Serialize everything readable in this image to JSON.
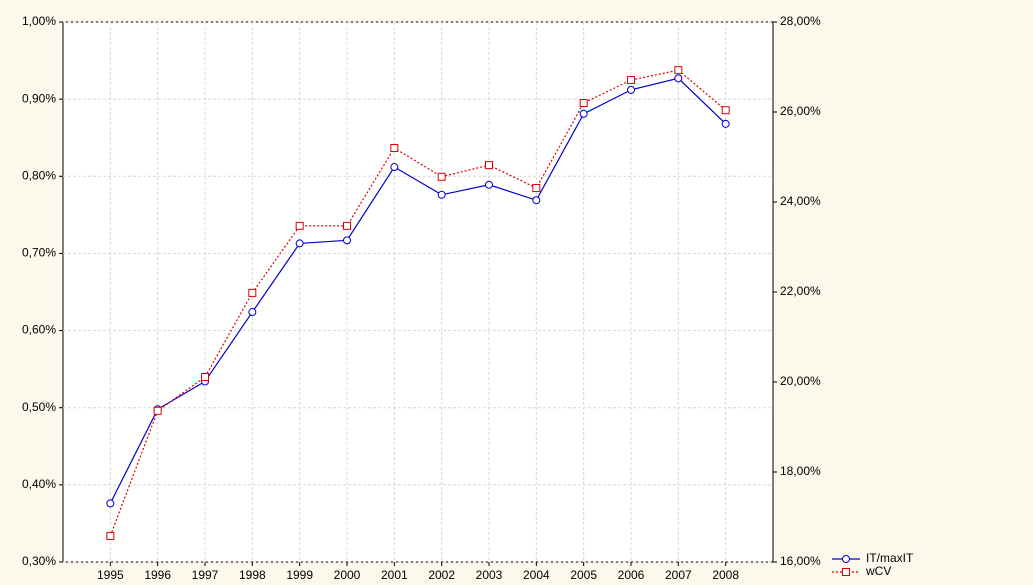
{
  "chart_data": {
    "type": "line",
    "x": [
      1995,
      1996,
      1997,
      1998,
      1999,
      2000,
      2001,
      2002,
      2003,
      2004,
      2005,
      2006,
      2007,
      2008
    ],
    "xlim": [
      1994,
      2009
    ],
    "xticks": [
      1995,
      1996,
      1997,
      1998,
      1999,
      2000,
      2001,
      2002,
      2003,
      2004,
      2005,
      2006,
      2007,
      2008
    ],
    "ylim": [
      0.3,
      1.0
    ],
    "yticks": [
      {
        "value": 0.3,
        "label": "0,30%"
      },
      {
        "value": 0.4,
        "label": "0,40%"
      },
      {
        "value": 0.5,
        "label": "0,50%"
      },
      {
        "value": 0.6,
        "label": "0,60%"
      },
      {
        "value": 0.7,
        "label": "0,70%"
      },
      {
        "value": 0.8,
        "label": "0,80%"
      },
      {
        "value": 0.9,
        "label": "0,90%"
      },
      {
        "value": 1.0,
        "label": "1,00%"
      }
    ],
    "y2lim": [
      16,
      28
    ],
    "y2ticks": [
      {
        "value": 16,
        "label": "16,00%"
      },
      {
        "value": 18,
        "label": "18,00%"
      },
      {
        "value": 20,
        "label": "20,00%"
      },
      {
        "value": 22,
        "label": "22,00%"
      },
      {
        "value": 24,
        "label": "24,00%"
      },
      {
        "value": 26,
        "label": "26,00%"
      },
      {
        "value": 28,
        "label": "28,00%"
      }
    ],
    "grid": true,
    "legend": "bottom-right",
    "series": [
      {
        "name": "IT/maxIT",
        "color": "#0000cc",
        "marker": "circle",
        "dash": "solid",
        "values": [
          0.376,
          0.498,
          0.534,
          0.624,
          0.713,
          0.717,
          0.812,
          0.776,
          0.789,
          0.769,
          0.881,
          0.912,
          0.927,
          0.868
        ]
      },
      {
        "name": "wCV",
        "color": "#dd0000",
        "marker": "square",
        "dash": "dotted",
        "axis": "y2",
        "values": [
          16.58,
          19.36,
          20.11,
          21.98,
          23.47,
          23.47,
          25.2,
          24.56,
          24.82,
          24.31,
          26.2,
          26.71,
          26.93,
          26.04
        ]
      }
    ]
  }
}
